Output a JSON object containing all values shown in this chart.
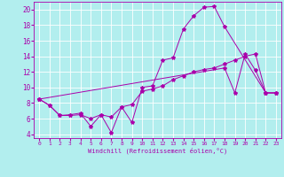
{
  "xlabel": "Windchill (Refroidissement éolien,°C)",
  "bg_color": "#b2eeee",
  "line_color": "#aa00aa",
  "grid_color": "#ffffff",
  "xlim": [
    -0.5,
    23.5
  ],
  "ylim": [
    3.5,
    21.0
  ],
  "yticks": [
    4,
    6,
    8,
    10,
    12,
    14,
    16,
    18,
    20
  ],
  "xticks": [
    0,
    1,
    2,
    3,
    4,
    5,
    6,
    7,
    8,
    9,
    10,
    11,
    12,
    13,
    14,
    15,
    16,
    17,
    18,
    19,
    20,
    21,
    22,
    23
  ],
  "series1": {
    "x": [
      0,
      1,
      2,
      3,
      4,
      5,
      6,
      7,
      8,
      9,
      10,
      11,
      12,
      13,
      14,
      15,
      16,
      17,
      18,
      22,
      23
    ],
    "y": [
      8.5,
      7.7,
      6.4,
      6.5,
      6.7,
      5.0,
      6.5,
      4.2,
      7.5,
      5.5,
      10.0,
      10.2,
      13.5,
      13.8,
      17.5,
      19.2,
      20.3,
      20.4,
      17.8,
      9.3,
      9.3
    ]
  },
  "series2": {
    "x": [
      0,
      1,
      2,
      3,
      4,
      5,
      6,
      7,
      8,
      9,
      10,
      11,
      12,
      13,
      14,
      15,
      16,
      17,
      18,
      19,
      20,
      21,
      22,
      23
    ],
    "y": [
      8.5,
      7.7,
      6.4,
      6.4,
      6.5,
      6.0,
      6.5,
      6.2,
      7.5,
      7.8,
      9.5,
      9.8,
      10.2,
      11.0,
      11.5,
      12.0,
      12.3,
      12.5,
      13.0,
      13.5,
      14.0,
      14.3,
      9.3,
      9.3
    ]
  },
  "series3": {
    "x": [
      0,
      18,
      19,
      20,
      21,
      22,
      23
    ],
    "y": [
      8.5,
      12.5,
      9.3,
      14.3,
      12.2,
      9.3,
      9.3
    ]
  }
}
